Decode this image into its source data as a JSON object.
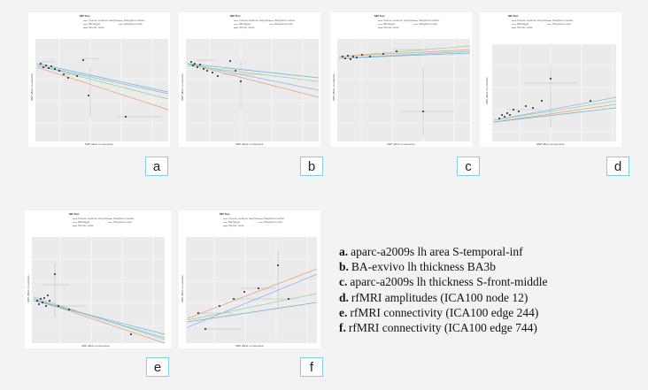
{
  "legend": {
    "title": "MR Test",
    "items": [
      {
        "label": "Inverse variance weighted",
        "color": "#e8a27a"
      },
      {
        "label": "Weighted median",
        "color": "#8ab4f8"
      },
      {
        "label": "MR Egger",
        "color": "#9bd39b"
      },
      {
        "label": "Weighted mode",
        "color": "#f0a0c0"
      },
      {
        "label": "Simple mode",
        "color": "#6bb7c7"
      }
    ]
  },
  "axes": {
    "x": "SNP effect on exposure",
    "y": "SNP effect on outcome"
  },
  "panels": [
    {
      "letter": "a"
    },
    {
      "letter": "b"
    },
    {
      "letter": "c"
    },
    {
      "letter": "d"
    },
    {
      "letter": "e"
    },
    {
      "letter": "f"
    }
  ],
  "captions": [
    {
      "letter": "a.",
      "text": "aparc-a2009s lh area S-temporal-inf"
    },
    {
      "letter": "b.",
      "text": "BA-exvivo lh thickness BA3b"
    },
    {
      "letter": "c.",
      "text": "aparc-a2009s lh thickness S-front-middle"
    },
    {
      "letter": "d.",
      "text": "rfMRI amplitudes (ICA100 node 12)"
    },
    {
      "letter": "e.",
      "text": "rfMRI connectivity (ICA100 edge 244)"
    },
    {
      "letter": "f.",
      "text": "rfMRI connectivity (ICA100 edge 744)"
    }
  ]
}
